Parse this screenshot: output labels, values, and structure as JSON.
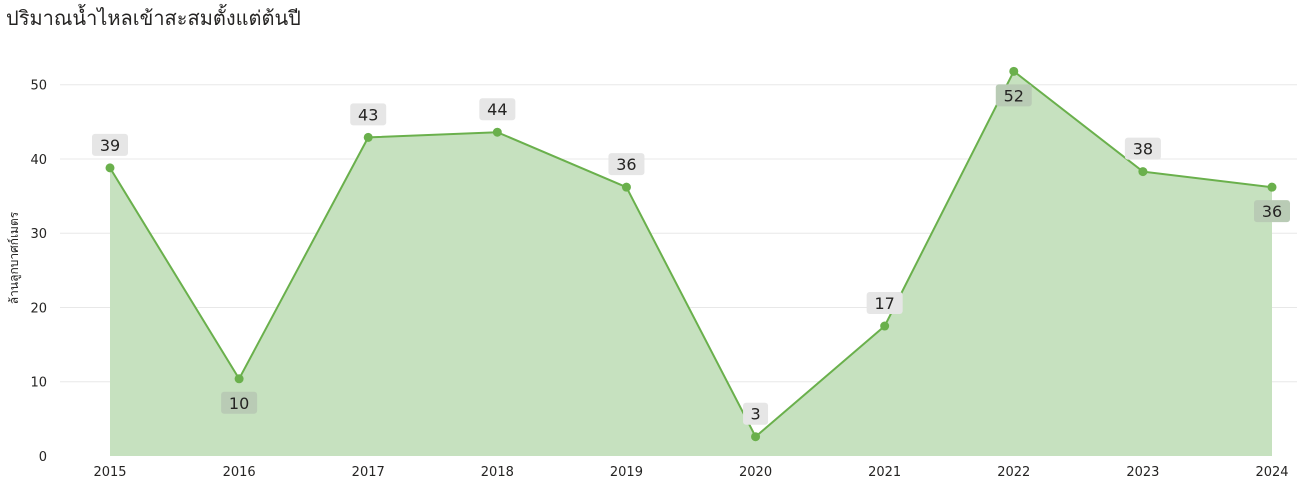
{
  "chart_data": {
    "type": "area",
    "title": "ปริมาณน้ำไหลเข้าสะสมตั้งแต่ต้นปี",
    "ylabel": "ล้านลูกบาศก์เมตร",
    "xlabel": "",
    "x": [
      "2015",
      "2016",
      "2017",
      "2018",
      "2019",
      "2020",
      "2021",
      "2022",
      "2023",
      "2024"
    ],
    "values": [
      38.8,
      10.4,
      42.9,
      43.6,
      36.2,
      2.6,
      17.5,
      51.8,
      38.3,
      36.2
    ],
    "data_labels": [
      "39",
      "10",
      "43",
      "44",
      "36",
      "3",
      "17",
      "52",
      "38",
      "36"
    ],
    "label_position": [
      "above",
      "below",
      "above",
      "above",
      "above",
      "above",
      "above",
      "below",
      "above",
      "below"
    ],
    "ylim": [
      0,
      54
    ],
    "yticks": [
      0,
      10,
      20,
      30,
      40,
      50
    ],
    "grid": true,
    "colors": {
      "line": "#6ab04c",
      "fill": "#c6e1bf",
      "label_bg_light": "#e6e6e6",
      "label_bg_dark": "#b9cbb5"
    }
  }
}
